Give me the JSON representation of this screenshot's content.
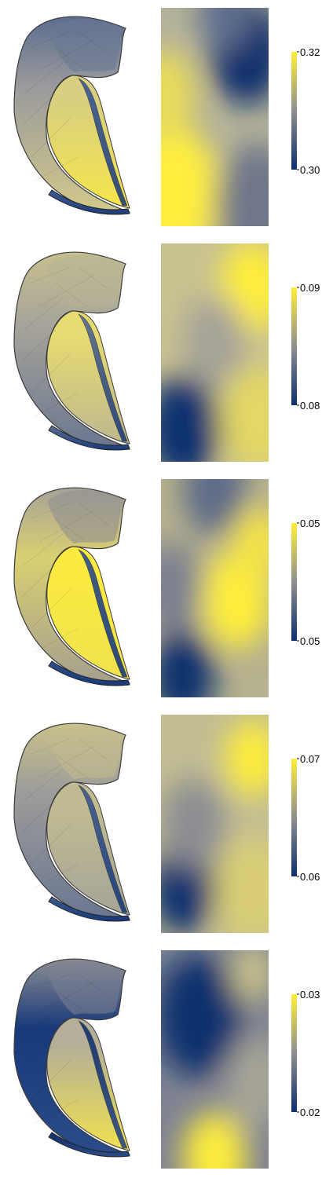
{
  "colormap": {
    "low": "#0d2f6e",
    "mid": "#8f8f8f",
    "high": "#ffee38",
    "name": "cividis"
  },
  "rows": [
    {
      "colorbar": {
        "max_label": "0.32",
        "min_label": "0.30"
      },
      "surface_colors": {
        "top": "#5b6d8f",
        "inner": "#d8cf80",
        "inner_low": "#f6e64a",
        "outer": "#9a9a9c",
        "outer_low": "#d2c98a",
        "hook": "#6a7893",
        "strip": "#3a5a96",
        "strip_low": "#203f7a"
      },
      "map_gradient": {
        "base": "#b4b29a",
        "blobs": [
          {
            "u": 0.8,
            "v": 0.2,
            "r": 0.35,
            "color": "#102e6c"
          },
          {
            "u": 0.6,
            "v": 0.03,
            "r": 0.25,
            "color": "#5d6d8d"
          },
          {
            "u": 0.1,
            "v": 0.85,
            "r": 0.45,
            "color": "#ffee3d"
          },
          {
            "u": 0.02,
            "v": 0.4,
            "r": 0.3,
            "color": "#e8dc5a"
          },
          {
            "u": 0.9,
            "v": 0.9,
            "r": 0.4,
            "color": "#6f778a"
          }
        ]
      }
    },
    {
      "colorbar": {
        "max_label": "0.09",
        "min_label": "0.08"
      },
      "surface_colors": {
        "top": "#c6c08e",
        "inner": "#e6da72",
        "inner_low": "#bdb88e",
        "outer": "#a8a59a",
        "outer_low": "#6b7790",
        "hook": "#b7b296",
        "strip": "#5a6c90",
        "strip_low": "#1b3c7b"
      },
      "map_gradient": {
        "base": "#c8c290",
        "blobs": [
          {
            "u": 0.2,
            "v": 0.85,
            "r": 0.35,
            "color": "#10306f"
          },
          {
            "u": 0.85,
            "v": 0.2,
            "r": 0.3,
            "color": "#ffee3a"
          },
          {
            "u": 0.5,
            "v": 0.45,
            "r": 0.3,
            "color": "#a6a399"
          },
          {
            "u": 0.9,
            "v": 0.8,
            "r": 0.35,
            "color": "#e3d765"
          }
        ]
      }
    },
    {
      "colorbar": {
        "max_label": "0.05",
        "min_label": "0.05"
      },
      "surface_colors": {
        "top": "#a7a397",
        "inner": "#fbea40",
        "inner_low": "#f0e24f",
        "outer": "#d9cf72",
        "outer_low": "#a49f8e",
        "hook": "#8e8d92",
        "strip": "#2f4f8c",
        "strip_low": "#183a7a"
      },
      "map_gradient": {
        "base": "#b6b18e",
        "blobs": [
          {
            "u": 0.2,
            "v": 0.9,
            "r": 0.3,
            "color": "#10306d"
          },
          {
            "u": 0.5,
            "v": 0.05,
            "r": 0.3,
            "color": "#5f6c88"
          },
          {
            "u": 0.7,
            "v": 0.55,
            "r": 0.32,
            "color": "#ffee3b"
          },
          {
            "u": 0.1,
            "v": 0.5,
            "r": 0.3,
            "color": "#7b8090"
          },
          {
            "u": 0.9,
            "v": 0.3,
            "r": 0.25,
            "color": "#f4e348"
          }
        ]
      }
    },
    {
      "colorbar": {
        "max_label": "0.07",
        "min_label": "0.06"
      },
      "surface_colors": {
        "top": "#c9c189",
        "inner": "#c0bb92",
        "inner_low": "#a6a497",
        "outer": "#9d9c9a",
        "outer_low": "#6a7691",
        "hook": "#c2bc90",
        "strip": "#3d5a90",
        "strip_low": "#183a7a"
      },
      "map_gradient": {
        "base": "#c2bd93",
        "blobs": [
          {
            "u": 0.2,
            "v": 0.8,
            "r": 0.3,
            "color": "#10306e"
          },
          {
            "u": 0.85,
            "v": 0.2,
            "r": 0.25,
            "color": "#ffee3a"
          },
          {
            "u": 0.3,
            "v": 0.5,
            "r": 0.3,
            "color": "#8c8d92"
          },
          {
            "u": 0.85,
            "v": 0.8,
            "r": 0.35,
            "color": "#d9ce76"
          }
        ]
      }
    },
    {
      "colorbar": {
        "max_label": "0.03",
        "min_label": "0.02"
      },
      "surface_colors": {
        "top": "#8c8c92",
        "inner": "#b3af98",
        "inner_low": "#f1e150",
        "outer": "#18397a",
        "outer_low": "#2b4c8a",
        "hook": "#7c8294",
        "strip": "#0f2f6d",
        "strip_low": "#2b4a86"
      },
      "map_gradient": {
        "base": "#7f8392",
        "blobs": [
          {
            "u": 0.35,
            "v": 0.3,
            "r": 0.4,
            "color": "#0f306d"
          },
          {
            "u": 0.5,
            "v": 0.95,
            "r": 0.3,
            "color": "#fdec3c"
          },
          {
            "u": 0.85,
            "v": 0.1,
            "r": 0.2,
            "color": "#c9c28b"
          },
          {
            "u": 0.9,
            "v": 0.6,
            "r": 0.3,
            "color": "#a6a497"
          }
        ]
      }
    }
  ]
}
